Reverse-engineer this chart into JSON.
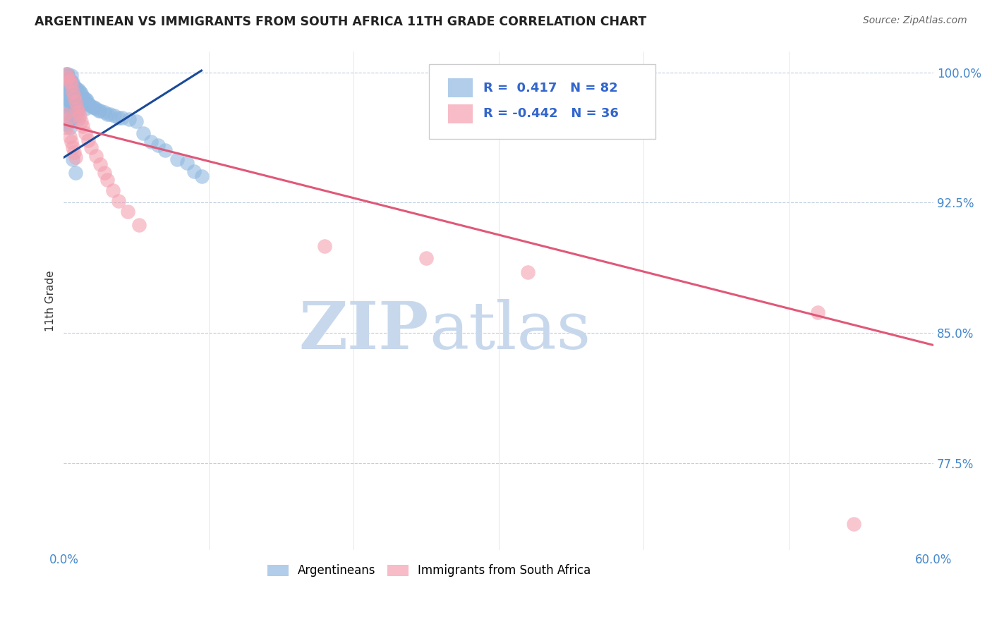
{
  "title": "ARGENTINEAN VS IMMIGRANTS FROM SOUTH AFRICA 11TH GRADE CORRELATION CHART",
  "source": "Source: ZipAtlas.com",
  "ylabel": "11th Grade",
  "xlim": [
    0.0,
    0.6
  ],
  "ylim": [
    0.725,
    1.012
  ],
  "ytick_positions": [
    0.775,
    0.85,
    0.925,
    1.0
  ],
  "yticklabels": [
    "77.5%",
    "85.0%",
    "92.5%",
    "100.0%"
  ],
  "xtick_vals": [
    0.0,
    0.1,
    0.2,
    0.3,
    0.4,
    0.5,
    0.6
  ],
  "xticklabels": [
    "0.0%",
    "",
    "",
    "",
    "",
    "",
    "60.0%"
  ],
  "blue_R": 0.417,
  "blue_N": 82,
  "pink_R": -0.442,
  "pink_N": 36,
  "blue_color": "#90B8E0",
  "pink_color": "#F4A0B0",
  "trendline_blue": "#1A4A9A",
  "trendline_pink": "#E05878",
  "watermark_zip": "ZIP",
  "watermark_atlas": "atlas",
  "watermark_color": "#C8D8EC",
  "legend_label_blue": "Argentineans",
  "legend_label_pink": "Immigrants from South Africa",
  "blue_trendline_x": [
    0.0,
    0.095
  ],
  "blue_trendline_y": [
    0.951,
    1.001
  ],
  "pink_trendline_x": [
    0.0,
    0.6
  ],
  "pink_trendline_y": [
    0.97,
    0.843
  ],
  "blue_x": [
    0.001,
    0.001,
    0.001,
    0.002,
    0.002,
    0.002,
    0.002,
    0.002,
    0.003,
    0.003,
    0.003,
    0.003,
    0.003,
    0.003,
    0.003,
    0.003,
    0.004,
    0.004,
    0.004,
    0.004,
    0.004,
    0.005,
    0.005,
    0.005,
    0.005,
    0.005,
    0.005,
    0.005,
    0.006,
    0.006,
    0.006,
    0.006,
    0.006,
    0.007,
    0.007,
    0.007,
    0.007,
    0.008,
    0.008,
    0.008,
    0.008,
    0.009,
    0.009,
    0.009,
    0.01,
    0.01,
    0.01,
    0.01,
    0.011,
    0.011,
    0.012,
    0.012,
    0.013,
    0.014,
    0.015,
    0.015,
    0.016,
    0.017,
    0.018,
    0.02,
    0.021,
    0.022,
    0.024,
    0.025,
    0.028,
    0.03,
    0.032,
    0.035,
    0.038,
    0.04,
    0.045,
    0.05,
    0.055,
    0.06,
    0.065,
    0.07,
    0.078,
    0.085,
    0.09,
    0.095,
    0.006,
    0.008
  ],
  "blue_y": [
    0.99,
    0.985,
    0.975,
    0.999,
    0.995,
    0.99,
    0.982,
    0.97,
    0.999,
    0.998,
    0.996,
    0.993,
    0.99,
    0.985,
    0.98,
    0.972,
    0.995,
    0.99,
    0.983,
    0.976,
    0.968,
    0.998,
    0.995,
    0.991,
    0.988,
    0.984,
    0.979,
    0.973,
    0.994,
    0.99,
    0.985,
    0.98,
    0.974,
    0.992,
    0.988,
    0.983,
    0.977,
    0.991,
    0.986,
    0.981,
    0.975,
    0.99,
    0.985,
    0.979,
    0.99,
    0.985,
    0.979,
    0.973,
    0.989,
    0.982,
    0.988,
    0.981,
    0.986,
    0.985,
    0.985,
    0.979,
    0.984,
    0.982,
    0.981,
    0.98,
    0.98,
    0.979,
    0.978,
    0.978,
    0.977,
    0.976,
    0.976,
    0.975,
    0.974,
    0.974,
    0.973,
    0.972,
    0.965,
    0.96,
    0.958,
    0.955,
    0.95,
    0.948,
    0.943,
    0.94,
    0.95,
    0.942
  ],
  "pink_x": [
    0.001,
    0.002,
    0.002,
    0.003,
    0.003,
    0.004,
    0.004,
    0.005,
    0.005,
    0.006,
    0.006,
    0.007,
    0.007,
    0.008,
    0.008,
    0.009,
    0.01,
    0.011,
    0.012,
    0.013,
    0.015,
    0.017,
    0.019,
    0.022,
    0.025,
    0.028,
    0.03,
    0.034,
    0.038,
    0.044,
    0.052,
    0.18,
    0.25,
    0.32,
    0.52,
    0.545
  ],
  "pink_y": [
    0.976,
    0.999,
    0.968,
    0.997,
    0.973,
    0.995,
    0.963,
    0.993,
    0.96,
    0.989,
    0.957,
    0.986,
    0.954,
    0.983,
    0.951,
    0.979,
    0.977,
    0.975,
    0.972,
    0.969,
    0.965,
    0.961,
    0.957,
    0.952,
    0.947,
    0.942,
    0.938,
    0.932,
    0.926,
    0.92,
    0.912,
    0.9,
    0.893,
    0.885,
    0.862,
    0.74
  ]
}
